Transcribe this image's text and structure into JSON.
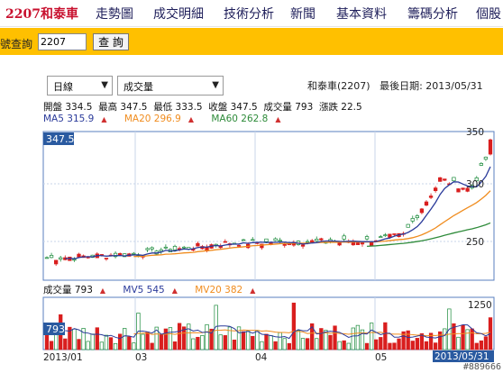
{
  "nav": {
    "brand": "2207和泰車",
    "items": [
      "走勢圖",
      "成交明細",
      "技術分析",
      "新聞",
      "基本資料",
      "籌碼分析",
      "個股"
    ]
  },
  "search": {
    "label": "號查詢",
    "value": "2207",
    "button": "查 詢"
  },
  "controls": {
    "period": "日線",
    "indicator": "成交量"
  },
  "stock": {
    "name": "和泰車(2207)",
    "last_date": "最後日期: 2013/05/31"
  },
  "ohlc": {
    "open": "開盤 334.5",
    "high": "最高 347.5",
    "low": "最低 333.5",
    "close": "收盤 347.5",
    "volume": "成交量 793",
    "change": "漲跌 22.5"
  },
  "ma": {
    "ma5": "MA5 315.9",
    "ma20": "MA20 296.9",
    "ma60": "MA60 262.8"
  },
  "vol_header": {
    "vol": "成交量 793",
    "mv5": "MV5 545",
    "mv20": "MV20 382"
  },
  "price_panel": {
    "current_tag": "347.5",
    "y_labels": [
      "350",
      "300",
      "250"
    ]
  },
  "volume_panel": {
    "current_tag": "793",
    "y_labels": [
      "1250"
    ]
  },
  "x_labels": [
    "2013/01",
    "03",
    "04",
    "05",
    "2013/05/31"
  ],
  "watermark": "#889666",
  "colors": {
    "up": "#d91e1e",
    "down": "#1a8a3a",
    "ma5": "#2a3a9a",
    "ma20": "#f08c1e",
    "ma60": "#2e8b3a",
    "search_bg": "#ffc000",
    "brand": "#c8102e"
  },
  "chart_data": {
    "type": "candlestick",
    "x_range": [
      "2013/01",
      "2013/05/31"
    ],
    "ylim": [
      220,
      355
    ],
    "last": {
      "open": 334.5,
      "high": 347.5,
      "low": 333.5,
      "close": 347.5
    },
    "ma_last": {
      "MA5": 315.9,
      "MA20": 296.9,
      "MA60": 262.8
    },
    "volume_last": {
      "vol": 793,
      "MV5": 545,
      "MV20": 382
    },
    "volume_ylim": [
      0,
      1300
    ]
  }
}
